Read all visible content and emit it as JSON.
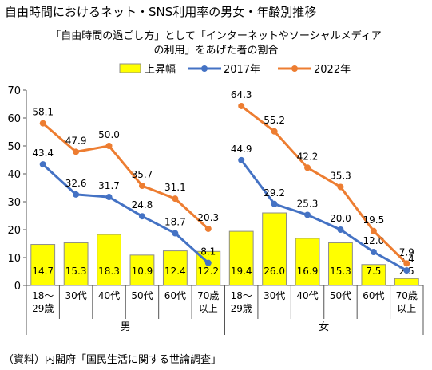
{
  "chart_data": {
    "type": "bar",
    "title": "自由時間におけるネット・SNS利用率の男女・年齢別推移",
    "subtitle": [
      "「自由時間の過ごし方」として「インターネットやソーシャルメディア",
      "の利用」をあげた者の割合"
    ],
    "ylim": [
      0,
      70
    ],
    "yticks": [
      0,
      10,
      20,
      30,
      40,
      50,
      60,
      70
    ],
    "groups": [
      {
        "name": "男",
        "categories": [
          [
            "18～",
            "29歳"
          ],
          [
            "30代"
          ],
          [
            "40代"
          ],
          [
            "50代"
          ],
          [
            "60代"
          ],
          [
            "70歳",
            "以上"
          ]
        ],
        "series": [
          {
            "name": "上昇幅",
            "type": "bar",
            "values": [
              14.7,
              15.3,
              18.3,
              10.9,
              12.4,
              12.2
            ]
          },
          {
            "name": "2017年",
            "type": "line",
            "values": [
              43.4,
              32.6,
              31.7,
              24.8,
              18.7,
              8.1
            ]
          },
          {
            "name": "2022年",
            "type": "line",
            "values": [
              58.1,
              47.9,
              50.0,
              35.7,
              31.1,
              20.3
            ]
          }
        ]
      },
      {
        "name": "女",
        "categories": [
          [
            "18～",
            "29歳"
          ],
          [
            "30代"
          ],
          [
            "40代"
          ],
          [
            "50代"
          ],
          [
            "60代"
          ],
          [
            "70歳",
            "以上"
          ]
        ],
        "series": [
          {
            "name": "上昇幅",
            "type": "bar",
            "values": [
              19.4,
              26.0,
              16.9,
              15.3,
              7.5,
              2.5
            ]
          },
          {
            "name": "2017年",
            "type": "line",
            "values": [
              44.9,
              29.2,
              25.3,
              20.0,
              12.0,
              5.4
            ]
          },
          {
            "name": "2022年",
            "type": "line",
            "values": [
              64.3,
              55.2,
              42.2,
              35.3,
              19.5,
              7.9
            ]
          }
        ]
      }
    ],
    "legend": [
      "上昇幅",
      "2017年",
      "2022年"
    ],
    "legend_position": "top",
    "colors": {
      "bar_fill": "#ffff00",
      "bar_stroke": "#8c8c8c",
      "line_2017": "#4472c4",
      "line_2022": "#ed7d31"
    },
    "grid": false
  },
  "source": "（資料）内閣府「国民生活に関する世論調査」"
}
